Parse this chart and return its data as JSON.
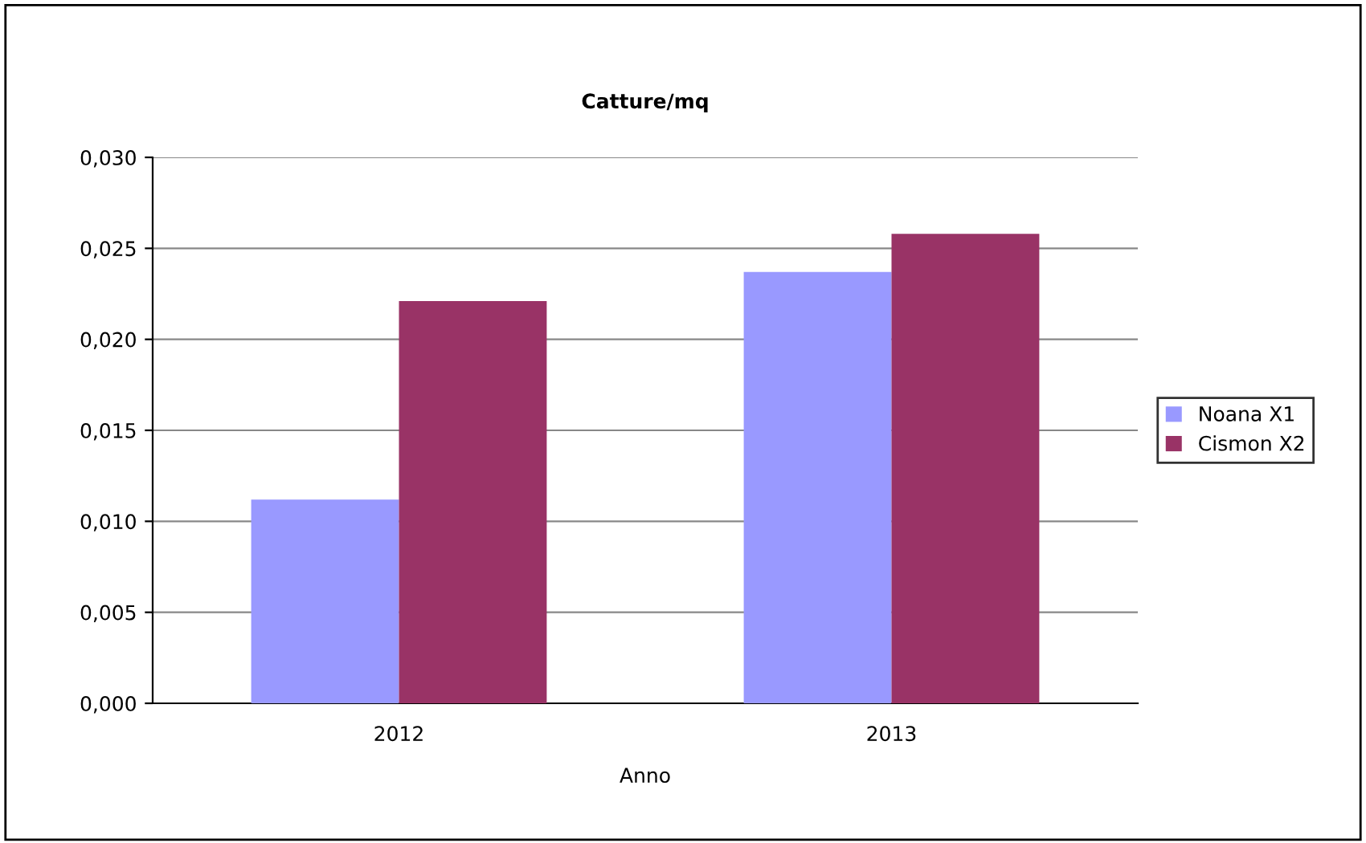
{
  "chart_data": {
    "type": "bar",
    "title": "Catture/mq",
    "xlabel": "Anno",
    "categories": [
      "2012",
      "2013"
    ],
    "series": [
      {
        "name": "Noana X1",
        "color": "#9999ff",
        "values": [
          0.0112,
          0.0237
        ]
      },
      {
        "name": "Cismon X2",
        "color": "#993366",
        "values": [
          0.0221,
          0.0258
        ]
      }
    ],
    "ylim": [
      0,
      0.03
    ],
    "yticks": [
      {
        "value": 0,
        "label": "0,000"
      },
      {
        "value": 0.005,
        "label": "0,005"
      },
      {
        "value": 0.01,
        "label": "0,010"
      },
      {
        "value": 0.015,
        "label": "0,015"
      },
      {
        "value": 0.02,
        "label": "0,020"
      },
      {
        "value": 0.025,
        "label": "0,025"
      },
      {
        "value": 0.03,
        "label": "0,030"
      }
    ],
    "grid": "y",
    "legend": "right"
  }
}
